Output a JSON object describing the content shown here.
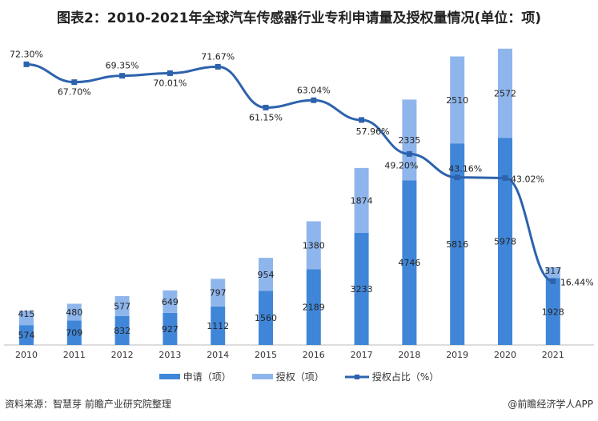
{
  "chart_data": {
    "type": "bar",
    "title": "图表2：2010-2021年全球汽车传感器行业专利申请量及授权量情况(单位：项)",
    "categories": [
      "2010",
      "2011",
      "2012",
      "2013",
      "2014",
      "2015",
      "2016",
      "2017",
      "2018",
      "2019",
      "2020",
      "2021"
    ],
    "series": [
      {
        "name": "申请（项）",
        "type": "bar",
        "stacked": true,
        "color": "#4086d8",
        "values": [
          574,
          709,
          832,
          927,
          1112,
          1560,
          2189,
          3233,
          4746,
          5816,
          5978,
          1928
        ]
      },
      {
        "name": "授权（项）",
        "type": "bar",
        "stacked": true,
        "color": "#8fb6ec",
        "values": [
          415,
          480,
          577,
          649,
          797,
          954,
          1380,
          1874,
          2335,
          2510,
          2572,
          317
        ]
      },
      {
        "name": "授权占比（%）",
        "type": "line",
        "color": "#2d62ad",
        "values": [
          72.3,
          67.7,
          69.35,
          70.01,
          71.67,
          61.15,
          63.04,
          57.96,
          49.2,
          43.16,
          43.02,
          16.44
        ],
        "labels": [
          "72.30%",
          "67.70%",
          "69.35%",
          "70.01%",
          "71.67%",
          "61.15%",
          "63.04%",
          "57.96%",
          "49.20%",
          "43.16%",
          "43.02%",
          "16.44%"
        ]
      }
    ],
    "grid": false,
    "legend": "bottom"
  },
  "footer": {
    "source": "资料来源：智慧芽 前瞻产业研究院整理",
    "brand": "@前瞻经济学人APP"
  }
}
